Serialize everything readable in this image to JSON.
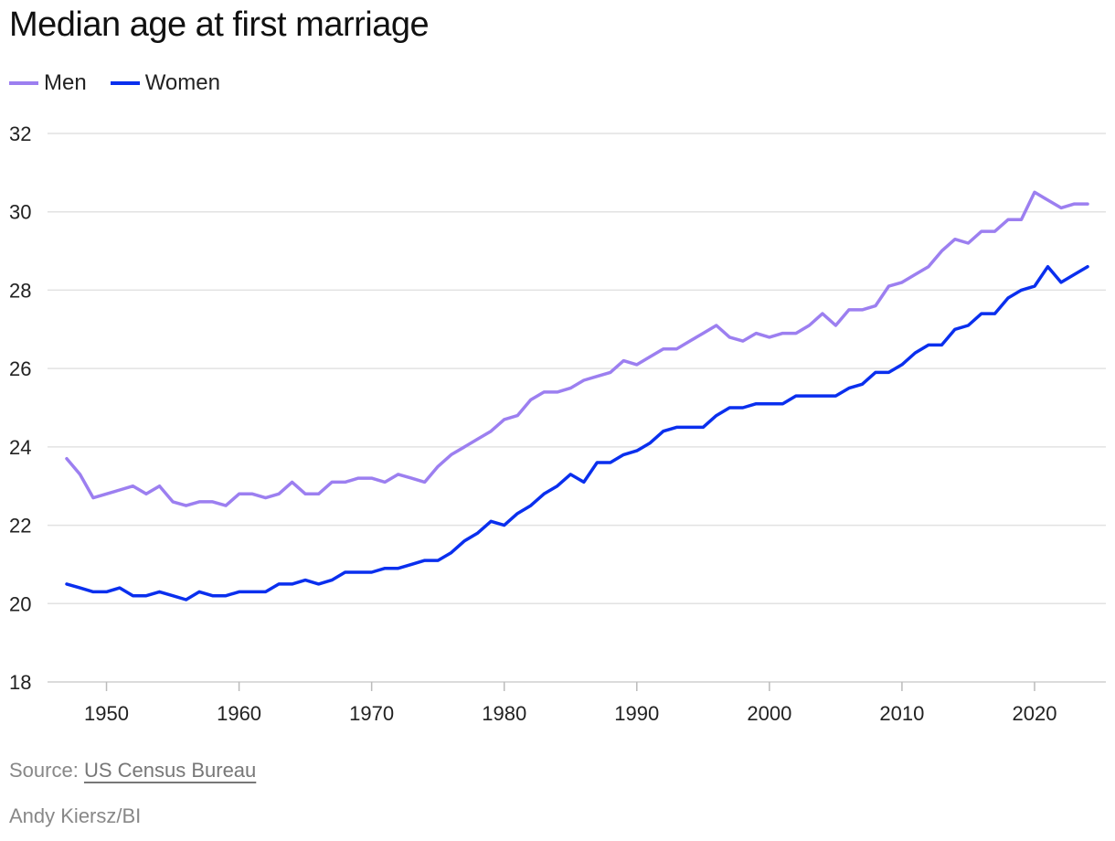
{
  "chart_data": {
    "type": "line",
    "title": "Median age at first marriage",
    "xlabel": "",
    "ylabel": "",
    "xlim": [
      1947,
      2024
    ],
    "ylim": [
      18,
      32
    ],
    "x_ticks": [
      1950,
      1960,
      1970,
      1980,
      1990,
      2000,
      2010,
      2020
    ],
    "y_ticks": [
      18,
      20,
      22,
      24,
      26,
      28,
      30,
      32
    ],
    "grid": true,
    "legend_position": "top-left",
    "x": [
      1947,
      1948,
      1949,
      1950,
      1951,
      1952,
      1953,
      1954,
      1955,
      1956,
      1957,
      1958,
      1959,
      1960,
      1961,
      1962,
      1963,
      1964,
      1965,
      1966,
      1967,
      1968,
      1969,
      1970,
      1971,
      1972,
      1973,
      1974,
      1975,
      1976,
      1977,
      1978,
      1979,
      1980,
      1981,
      1982,
      1983,
      1984,
      1985,
      1986,
      1987,
      1988,
      1989,
      1990,
      1991,
      1992,
      1993,
      1994,
      1995,
      1996,
      1997,
      1998,
      1999,
      2000,
      2001,
      2002,
      2003,
      2004,
      2005,
      2006,
      2007,
      2008,
      2009,
      2010,
      2011,
      2012,
      2013,
      2014,
      2015,
      2016,
      2017,
      2018,
      2019,
      2020,
      2021,
      2022,
      2023,
      2024
    ],
    "series": [
      {
        "name": "Men",
        "color": "#9c7ff0",
        "values": [
          23.7,
          23.3,
          22.7,
          22.8,
          22.9,
          23.0,
          22.8,
          23.0,
          22.6,
          22.5,
          22.6,
          22.6,
          22.5,
          22.8,
          22.8,
          22.7,
          22.8,
          23.1,
          22.8,
          22.8,
          23.1,
          23.1,
          23.2,
          23.2,
          23.1,
          23.3,
          23.2,
          23.1,
          23.5,
          23.8,
          24.0,
          24.2,
          24.4,
          24.7,
          24.8,
          25.2,
          25.4,
          25.4,
          25.5,
          25.7,
          25.8,
          25.9,
          26.2,
          26.1,
          26.3,
          26.5,
          26.5,
          26.7,
          26.9,
          27.1,
          26.8,
          26.7,
          26.9,
          26.8,
          26.9,
          26.9,
          27.1,
          27.4,
          27.1,
          27.5,
          27.5,
          27.6,
          28.1,
          28.2,
          28.4,
          28.6,
          29.0,
          29.3,
          29.2,
          29.5,
          29.5,
          29.8,
          29.8,
          30.5,
          30.3,
          30.1,
          30.2,
          30.2
        ]
      },
      {
        "name": "Women",
        "color": "#0a2fee",
        "values": [
          20.5,
          20.4,
          20.3,
          20.3,
          20.4,
          20.2,
          20.2,
          20.3,
          20.2,
          20.1,
          20.3,
          20.2,
          20.2,
          20.3,
          20.3,
          20.3,
          20.5,
          20.5,
          20.6,
          20.5,
          20.6,
          20.8,
          20.8,
          20.8,
          20.9,
          20.9,
          21.0,
          21.1,
          21.1,
          21.3,
          21.6,
          21.8,
          22.1,
          22.0,
          22.3,
          22.5,
          22.8,
          23.0,
          23.3,
          23.1,
          23.6,
          23.6,
          23.8,
          23.9,
          24.1,
          24.4,
          24.5,
          24.5,
          24.5,
          24.8,
          25.0,
          25.0,
          25.1,
          25.1,
          25.1,
          25.3,
          25.3,
          25.3,
          25.3,
          25.5,
          25.6,
          25.9,
          25.9,
          26.1,
          26.4,
          26.6,
          26.6,
          27.0,
          27.1,
          27.4,
          27.4,
          27.8,
          28.0,
          28.1,
          28.6,
          28.2,
          28.4,
          28.6
        ]
      }
    ]
  },
  "footer": {
    "source_prefix": "Source:",
    "source_link": "US Census Bureau",
    "credit": "Andy Kiersz/BI"
  }
}
